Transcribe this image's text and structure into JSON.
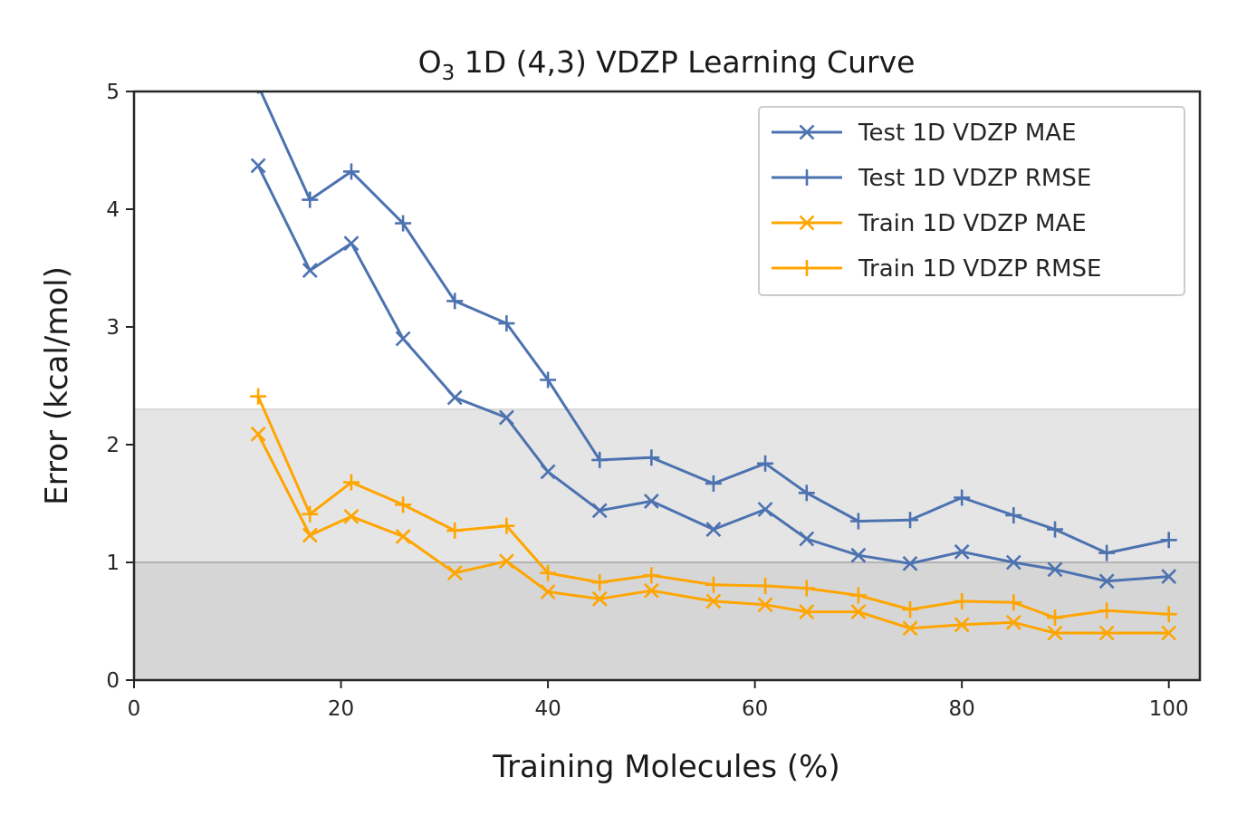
{
  "chart_data": {
    "type": "line",
    "title": {
      "prefix": "O",
      "subscript": "3",
      "suffix": " 1D (4,3) VDZP Learning Curve"
    },
    "xlabel": "Training Molecules (%)",
    "ylabel": "Error (kcal/mol)",
    "xlim": [
      0,
      103
    ],
    "ylim": [
      0,
      5
    ],
    "xticks": [
      0,
      20,
      40,
      60,
      80,
      100
    ],
    "yticks": [
      0,
      1,
      2,
      3,
      4,
      5
    ],
    "grid": false,
    "legend_position": "top-right",
    "shaded_regions": [
      {
        "y0": 0,
        "y1": 1,
        "color": "#d6d6d6"
      },
      {
        "y0": 1,
        "y1": 2.3,
        "color": "#e5e5e5"
      }
    ],
    "reference_lines": [
      {
        "y": 1,
        "color": "#b3b3b3"
      },
      {
        "y": 2.3,
        "color": "#d9d9d9"
      }
    ],
    "series": [
      {
        "name": "Test 1D VDZP MAE",
        "color": "#4c72b0",
        "marker": "x",
        "x": [
          12,
          17,
          21,
          26,
          31,
          36,
          40,
          45,
          50,
          56,
          61,
          65,
          70,
          75,
          80,
          85,
          89,
          94,
          100
        ],
        "y": [
          4.37,
          3.48,
          3.71,
          2.9,
          2.4,
          2.23,
          1.77,
          1.44,
          1.52,
          1.28,
          1.45,
          1.2,
          1.06,
          0.99,
          1.09,
          1.0,
          0.94,
          0.84,
          0.88
        ]
      },
      {
        "name": "Test 1D VDZP RMSE",
        "color": "#4c72b0",
        "marker": "+",
        "x": [
          12,
          17,
          21,
          26,
          31,
          36,
          40,
          45,
          50,
          56,
          61,
          65,
          70,
          75,
          80,
          85,
          89,
          94,
          100
        ],
        "y": [
          5.05,
          4.08,
          4.32,
          3.88,
          3.22,
          3.03,
          2.55,
          1.87,
          1.89,
          1.67,
          1.84,
          1.59,
          1.35,
          1.36,
          1.55,
          1.4,
          1.28,
          1.08,
          1.19
        ]
      },
      {
        "name": "Train 1D VDZP MAE",
        "color": "#ffa500",
        "marker": "x",
        "x": [
          12,
          17,
          21,
          26,
          31,
          36,
          40,
          45,
          50,
          56,
          61,
          65,
          70,
          75,
          80,
          85,
          89,
          94,
          100
        ],
        "y": [
          2.09,
          1.23,
          1.39,
          1.22,
          0.91,
          1.01,
          0.75,
          0.69,
          0.76,
          0.67,
          0.64,
          0.58,
          0.58,
          0.44,
          0.47,
          0.49,
          0.4,
          0.4,
          0.4
        ]
      },
      {
        "name": "Train 1D VDZP RMSE",
        "color": "#ffa500",
        "marker": "+",
        "x": [
          12,
          17,
          21,
          26,
          31,
          36,
          40,
          45,
          50,
          56,
          61,
          65,
          70,
          75,
          80,
          85,
          89,
          94,
          100
        ],
        "y": [
          2.41,
          1.41,
          1.68,
          1.49,
          1.27,
          1.31,
          0.91,
          0.83,
          0.89,
          0.81,
          0.8,
          0.78,
          0.72,
          0.6,
          0.67,
          0.66,
          0.53,
          0.59,
          0.56
        ]
      }
    ]
  }
}
